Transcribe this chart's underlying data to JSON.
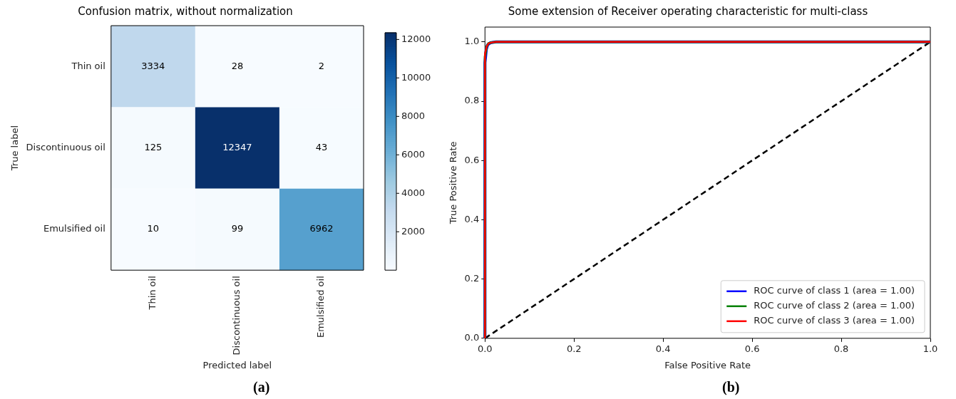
{
  "chart_data": [
    {
      "type": "heatmap",
      "title": "Confusion matrix, without normalization",
      "xlabel": "Predicted label",
      "ylabel": "True label",
      "categories": [
        "Thin oil",
        "Discontinuous oil",
        "Emulsified oil"
      ],
      "y_categories": [
        "Thin oil",
        "Discontinuous oil",
        "Emulsified oil"
      ],
      "cells": [
        [
          3334,
          28,
          2
        ],
        [
          125,
          12347,
          43
        ],
        [
          10,
          99,
          6962
        ]
      ],
      "clim": [
        2,
        12347
      ],
      "cticks": [
        2000,
        4000,
        6000,
        8000,
        10000,
        12000
      ],
      "data_labels": true,
      "annotations": [
        "(a)"
      ]
    },
    {
      "type": "line",
      "title": "Some extension of Receiver operating characteristic for multi-class",
      "xlabel": "False Positive Rate",
      "ylabel": "True Positive Rate",
      "xlim": [
        0,
        1
      ],
      "ylim": [
        0,
        1.05
      ],
      "xticks": [
        {
          "value": 0,
          "label": "0.0"
        },
        {
          "value": 0.2,
          "label": "0.2"
        },
        {
          "value": 0.4,
          "label": "0.4"
        },
        {
          "value": 0.6,
          "label": "0.6"
        },
        {
          "value": 0.8,
          "label": "0.8"
        },
        {
          "value": 1,
          "label": "1.0"
        }
      ],
      "yticks": [
        {
          "value": 0,
          "label": "0.0"
        },
        {
          "value": 0.2,
          "label": "0.2"
        },
        {
          "value": 0.4,
          "label": "0.4"
        },
        {
          "value": 0.6,
          "label": "0.6"
        },
        {
          "value": 0.8,
          "label": "0.8"
        },
        {
          "value": 1,
          "label": "1.0"
        }
      ],
      "legend": "bottom right",
      "grid": false,
      "series": [
        {
          "name": "ROC curve of class 1 (area = 1.00)",
          "color": "#0000ff",
          "x": [
            0,
            0,
            0.003,
            0.006,
            0.012,
            0.025,
            1
          ],
          "values": [
            0,
            0.93,
            0.975,
            0.99,
            0.997,
            1,
            1
          ]
        },
        {
          "name": "ROC curve of class 2 (area = 1.00)",
          "color": "#008000",
          "x": [
            0,
            0,
            0.004,
            0.008,
            0.015,
            0.025,
            1
          ],
          "values": [
            0,
            0.95,
            0.985,
            0.995,
            0.998,
            1,
            1
          ]
        },
        {
          "name": "ROC curve of class 3 (area = 1.00)",
          "color": "#ff0000",
          "x": [
            0,
            0,
            0.004,
            0.008,
            0.015,
            0.025,
            1
          ],
          "values": [
            0,
            0.96,
            0.985,
            0.995,
            0.998,
            1,
            1
          ]
        },
        {
          "color": "#000000",
          "line_style": "dashed",
          "x": [
            0,
            1
          ],
          "values": [
            0,
            1
          ]
        }
      ],
      "annotations": [
        "(b)"
      ]
    }
  ]
}
